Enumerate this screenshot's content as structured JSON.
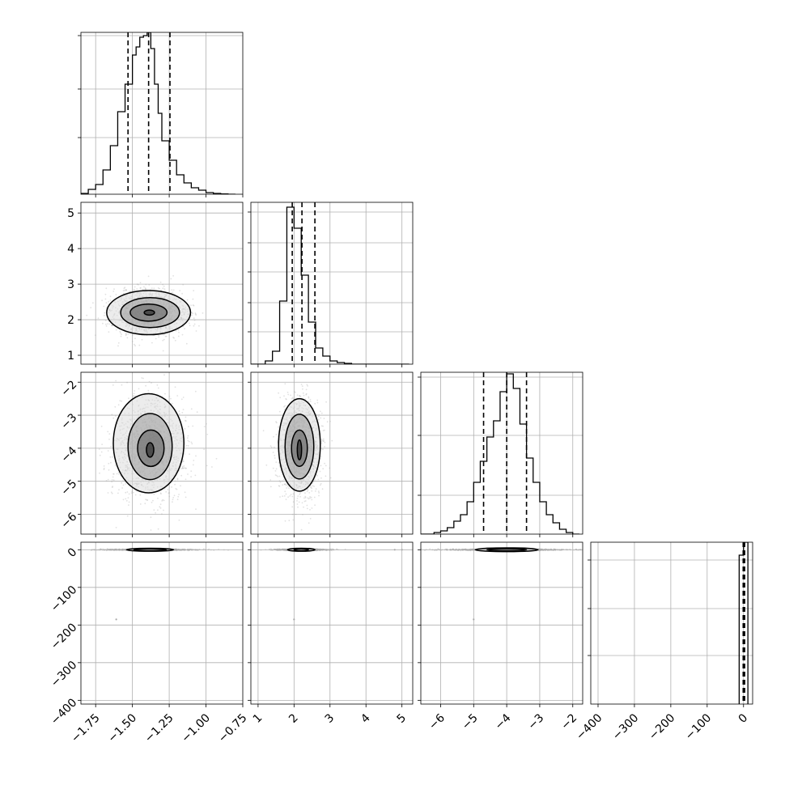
{
  "figure": {
    "type": "corner-plot",
    "colors": {
      "line": "#000000",
      "grid": "#b0b0b0",
      "scatter": "#a9a9a9",
      "density": "#000000"
    }
  },
  "chart_data": [
    {
      "id": "hist-1",
      "type": "bar",
      "panel": "histogram",
      "row": 0,
      "col": 0,
      "x_range": [
        -1.85,
        -0.75
      ],
      "y_range": [
        0,
        1.0
      ],
      "bin_edges": [
        -1.85,
        -1.8,
        -1.75,
        -1.7,
        -1.65,
        -1.6,
        -1.55,
        -1.5,
        -1.475,
        -1.45,
        -1.425,
        -1.4,
        -1.375,
        -1.35,
        -1.325,
        -1.3,
        -1.25,
        -1.2,
        -1.15,
        -1.1,
        -1.05,
        -1.0,
        -0.95,
        -0.9,
        -0.85,
        -0.8
      ],
      "values": [
        0.005,
        0.03,
        0.06,
        0.15,
        0.3,
        0.51,
        0.68,
        0.86,
        0.91,
        0.97,
        0.98,
        1.0,
        0.9,
        0.68,
        0.5,
        0.33,
        0.21,
        0.12,
        0.07,
        0.04,
        0.025,
        0.01,
        0.005,
        0.002,
        0.0
      ],
      "quantile_lines": [
        -1.53,
        -1.39,
        -1.245
      ],
      "x_ticks": [
        -1.75,
        -1.5,
        -1.25,
        -1.0,
        -0.75
      ],
      "y_gridlines": [
        0.35,
        0.65,
        0.98
      ]
    },
    {
      "id": "scatter-2-1",
      "type": "scatter",
      "panel": "2d",
      "row": 1,
      "col": 0,
      "x_range": [
        -1.85,
        -0.75
      ],
      "y_range": [
        0.75,
        5.3
      ],
      "center": [
        -1.39,
        2.2
      ],
      "spread": [
        0.115,
        0.29
      ],
      "contours": [
        {
          "center": [
            -1.39,
            2.2
          ],
          "rx": 0.285,
          "ry": 0.62
        },
        {
          "center": [
            -1.38,
            2.2
          ],
          "rx": 0.2,
          "ry": 0.42
        },
        {
          "center": [
            -1.39,
            2.2
          ],
          "rx": 0.125,
          "ry": 0.24
        },
        {
          "center": [
            -1.385,
            2.2
          ],
          "rx": 0.035,
          "ry": 0.07
        }
      ],
      "x_ticks": [
        -1.75,
        -1.5,
        -1.25,
        -1.0,
        -0.75
      ],
      "y_ticks": [
        1,
        2,
        3,
        4,
        5
      ],
      "y_tick_labels": [
        "1",
        "2",
        "3",
        "4",
        "5"
      ]
    },
    {
      "id": "hist-2",
      "type": "bar",
      "panel": "histogram",
      "row": 1,
      "col": 1,
      "x_range": [
        0.8,
        5.3
      ],
      "y_range": [
        0,
        1.0
      ],
      "bin_edges": [
        0.8,
        1.0,
        1.2,
        1.4,
        1.6,
        1.8,
        2.0,
        2.2,
        2.4,
        2.6,
        2.8,
        3.0,
        3.2,
        3.4,
        3.6,
        3.8,
        4.0,
        4.2,
        4.4,
        4.6,
        4.8,
        5.0,
        5.2
      ],
      "values": [
        0.0,
        0.0,
        0.02,
        0.08,
        0.39,
        0.97,
        0.84,
        0.55,
        0.26,
        0.1,
        0.05,
        0.02,
        0.01,
        0.005,
        0.0,
        0.0,
        0.0,
        0.0,
        0.0,
        0.0,
        0.0,
        0.0
      ],
      "quantile_lines": [
        1.95,
        2.22,
        2.58
      ],
      "x_ticks": [
        1,
        2,
        3,
        4,
        5
      ],
      "y_gridlines": [
        0.2,
        0.38,
        0.57,
        0.75,
        0.94
      ]
    },
    {
      "id": "scatter-3-1",
      "type": "scatter",
      "panel": "2d",
      "row": 2,
      "col": 0,
      "x_range": [
        -1.85,
        -0.75
      ],
      "y_range": [
        -6.6,
        -1.7
      ],
      "center": [
        -1.38,
        -4.0
      ],
      "spread": [
        0.115,
        0.7
      ],
      "contours": [
        {
          "center": [
            -1.39,
            -3.85
          ],
          "rx": 0.24,
          "ry": 1.5
        },
        {
          "center": [
            -1.38,
            -3.95
          ],
          "rx": 0.15,
          "ry": 1.0
        },
        {
          "center": [
            -1.375,
            -4.0
          ],
          "rx": 0.09,
          "ry": 0.55
        },
        {
          "center": [
            -1.38,
            -4.05
          ],
          "rx": 0.025,
          "ry": 0.22
        }
      ],
      "x_ticks": [
        -1.75,
        -1.5,
        -1.25,
        -1.0,
        -0.75
      ],
      "y_ticks": [
        -6,
        -5,
        -4,
        -3,
        -2
      ],
      "y_tick_labels": [
        "−6",
        "−5",
        "−4",
        "−3",
        "−2"
      ]
    },
    {
      "id": "scatter-3-2",
      "type": "scatter",
      "panel": "2d",
      "row": 2,
      "col": 1,
      "x_range": [
        0.8,
        5.3
      ],
      "y_range": [
        -6.6,
        -1.7
      ],
      "center": [
        2.15,
        -4.0
      ],
      "spread": [
        0.27,
        0.7
      ],
      "contours": [
        {
          "center": [
            2.15,
            -3.9
          ],
          "rx": 0.58,
          "ry": 1.4
        },
        {
          "center": [
            2.15,
            -3.95
          ],
          "rx": 0.4,
          "ry": 0.98
        },
        {
          "center": [
            2.15,
            -4.0
          ],
          "rx": 0.22,
          "ry": 0.55
        },
        {
          "center": [
            2.15,
            -4.05
          ],
          "rx": 0.06,
          "ry": 0.3
        }
      ],
      "x_ticks": [
        1,
        2,
        3,
        4,
        5
      ],
      "y_ticks": [
        -6,
        -5,
        -4,
        -3,
        -2
      ]
    },
    {
      "id": "hist-3",
      "type": "bar",
      "panel": "histogram",
      "row": 2,
      "col": 2,
      "x_range": [
        -6.6,
        -1.7
      ],
      "y_range": [
        0,
        1.0
      ],
      "bin_edges": [
        -6.6,
        -6.4,
        -6.2,
        -6.0,
        -5.8,
        -5.6,
        -5.4,
        -5.2,
        -5.0,
        -4.8,
        -4.6,
        -4.4,
        -4.2,
        -4.0,
        -3.8,
        -3.6,
        -3.4,
        -3.2,
        -3.0,
        -2.8,
        -2.6,
        -2.4,
        -2.2,
        -2.0,
        -1.8
      ],
      "values": [
        0.0,
        0.0,
        0.01,
        0.02,
        0.04,
        0.08,
        0.12,
        0.2,
        0.32,
        0.45,
        0.6,
        0.7,
        0.88,
        0.99,
        0.9,
        0.68,
        0.47,
        0.32,
        0.2,
        0.12,
        0.07,
        0.03,
        0.01,
        0.0
      ],
      "quantile_lines": [
        -4.7,
        -4.0,
        -3.4
      ],
      "x_ticks": [
        -6,
        -5,
        -4,
        -3,
        -2
      ],
      "y_gridlines": [
        0.24,
        0.61,
        0.97
      ]
    },
    {
      "id": "scatter-4-1",
      "type": "scatter",
      "panel": "2d",
      "row": 3,
      "col": 0,
      "x_range": [
        -1.85,
        -0.75
      ],
      "y_range": [
        -410,
        20
      ],
      "center": [
        -1.39,
        0.0
      ],
      "spread": [
        0.13,
        0.8
      ],
      "outliers": [
        [
          -1.61,
          -185
        ]
      ],
      "contours": [
        {
          "center": [
            -1.38,
            0.0
          ],
          "rx": 0.16,
          "ry": 4.0
        },
        {
          "center": [
            -1.38,
            0.0
          ],
          "rx": 0.11,
          "ry": 2.2
        }
      ],
      "x_ticks": [
        -1.75,
        -1.5,
        -1.25,
        -1.0,
        -0.75
      ],
      "x_tick_labels": [
        "−1.75",
        "−1.50",
        "−1.25",
        "−1.00",
        "−0.75"
      ],
      "y_ticks": [
        -400,
        -300,
        -200,
        -100,
        0
      ],
      "y_tick_labels": [
        "−400",
        "−300",
        "−200",
        "−100",
        "0"
      ]
    },
    {
      "id": "scatter-4-2",
      "type": "scatter",
      "panel": "2d",
      "row": 3,
      "col": 1,
      "x_range": [
        0.8,
        5.3
      ],
      "y_range": [
        -410,
        20
      ],
      "center": [
        2.2,
        0.0
      ],
      "spread": [
        0.3,
        0.8
      ],
      "outliers": [
        [
          2.0,
          -185
        ],
        [
          4.8,
          0.0
        ],
        [
          5.0,
          0.0
        ]
      ],
      "contours": [
        {
          "center": [
            2.2,
            0.0
          ],
          "rx": 0.38,
          "ry": 4.0
        },
        {
          "center": [
            2.2,
            0.0
          ],
          "rx": 0.2,
          "ry": 2.2
        }
      ],
      "x_ticks": [
        1,
        2,
        3,
        4,
        5
      ],
      "x_tick_labels": [
        "1",
        "2",
        "3",
        "4",
        "5"
      ],
      "y_ticks": [
        -400,
        -300,
        -200,
        -100,
        0
      ]
    },
    {
      "id": "scatter-4-3",
      "type": "scatter",
      "panel": "2d",
      "row": 3,
      "col": 2,
      "x_range": [
        -6.6,
        -1.7
      ],
      "y_range": [
        -410,
        20
      ],
      "center": [
        -4.0,
        0.0
      ],
      "spread": [
        0.8,
        0.8
      ],
      "outliers": [
        [
          -5.0,
          -185
        ]
      ],
      "contours": [
        {
          "center": [
            -4.0,
            0.0
          ],
          "rx": 0.95,
          "ry": 5.0
        },
        {
          "center": [
            -4.0,
            0.0
          ],
          "rx": 0.6,
          "ry": 2.6
        }
      ],
      "x_ticks": [
        -6,
        -5,
        -4,
        -3,
        -2
      ],
      "x_tick_labels": [
        "−6",
        "−5",
        "−4",
        "−3",
        "−2"
      ],
      "y_ticks": [
        -400,
        -300,
        -200,
        -100,
        0
      ]
    },
    {
      "id": "hist-4",
      "type": "bar",
      "panel": "histogram",
      "row": 3,
      "col": 3,
      "x_range": [
        -420,
        25
      ],
      "y_range": [
        0,
        1.0
      ],
      "bin_edges": [
        -12,
        0,
        12
      ],
      "values": [
        0.92,
        1.0
      ],
      "quantile_lines": [
        -1,
        1,
        3
      ],
      "x_ticks": [
        -400,
        -300,
        -200,
        -100,
        0
      ],
      "x_tick_labels": [
        "−400",
        "−300",
        "−200",
        "−100",
        "0"
      ],
      "y_gridlines": [
        0.3,
        0.59,
        0.89
      ]
    }
  ]
}
